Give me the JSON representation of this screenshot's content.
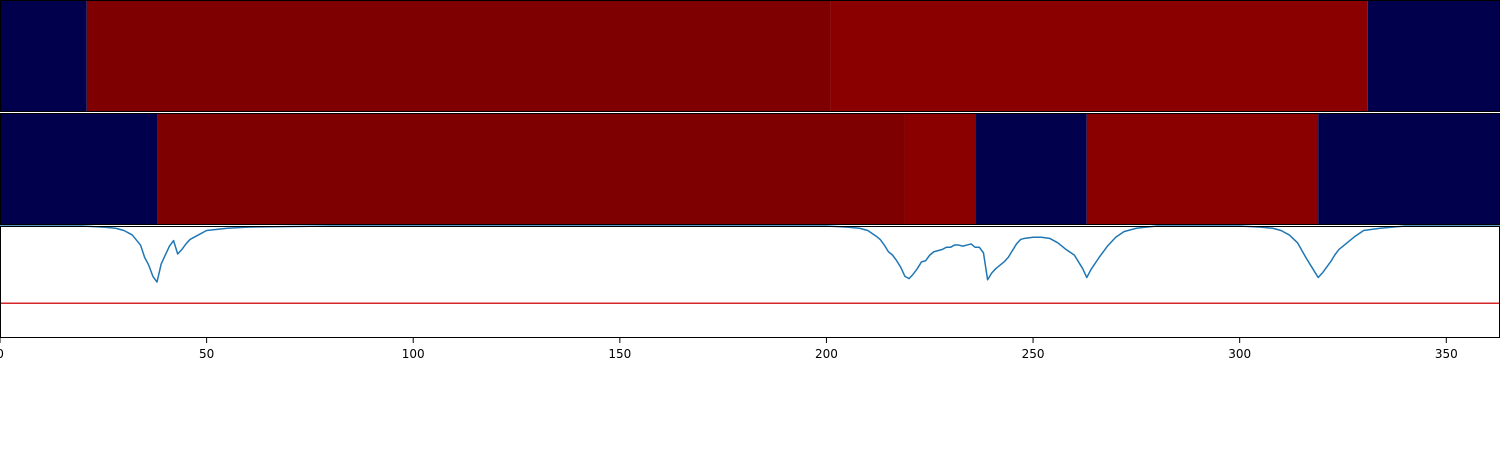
{
  "chart_data": [
    {
      "type": "heatmap",
      "row": 1,
      "xlim": [
        0,
        363
      ],
      "segments": [
        {
          "start": 0,
          "end": 21,
          "color": "#00004c"
        },
        {
          "start": 21,
          "end": 201,
          "color": "#7e0000"
        },
        {
          "start": 201,
          "end": 331,
          "color": "#8a0000"
        },
        {
          "start": 331,
          "end": 363,
          "color": "#00004c"
        }
      ]
    },
    {
      "type": "heatmap",
      "row": 2,
      "xlim": [
        0,
        363
      ],
      "segments": [
        {
          "start": 0,
          "end": 38,
          "color": "#00004c"
        },
        {
          "start": 38,
          "end": 219,
          "color": "#7e0000"
        },
        {
          "start": 219,
          "end": 236,
          "color": "#8a0000"
        },
        {
          "start": 236,
          "end": 263,
          "color": "#00004c"
        },
        {
          "start": 263,
          "end": 319,
          "color": "#8a0000"
        },
        {
          "start": 319,
          "end": 363,
          "color": "#00004c"
        }
      ]
    },
    {
      "type": "line",
      "xlim": [
        0,
        363
      ],
      "ylim": [
        0,
        1
      ],
      "threshold": {
        "value": 0.31,
        "color": "#d62728"
      },
      "series": [
        {
          "color": "#1f77b4",
          "x": [
            0,
            20,
            25,
            28,
            30,
            32,
            34,
            35,
            36,
            37,
            38,
            39,
            40,
            41,
            42,
            43,
            44,
            45,
            46,
            48,
            50,
            55,
            60,
            80,
            200,
            205,
            208,
            210,
            212,
            213,
            214,
            215,
            216,
            217,
            218,
            219,
            220,
            221,
            222,
            223,
            224,
            225,
            226,
            227,
            228,
            229,
            230,
            231,
            232,
            233,
            234,
            235,
            236,
            237,
            238,
            239,
            240,
            241,
            242,
            243,
            244,
            245,
            246,
            247,
            248,
            250,
            252,
            254,
            256,
            258,
            260,
            262,
            263,
            264,
            266,
            268,
            270,
            272,
            275,
            280,
            290,
            300,
            305,
            308,
            310,
            312,
            314,
            316,
            318,
            319,
            320,
            321,
            322,
            323,
            324,
            325,
            326,
            327,
            328,
            330,
            332,
            334,
            340,
            363
          ],
          "y": [
            1.0,
            1.0,
            0.99,
            0.98,
            0.96,
            0.92,
            0.83,
            0.72,
            0.65,
            0.55,
            0.5,
            0.66,
            0.74,
            0.82,
            0.87,
            0.75,
            0.79,
            0.84,
            0.88,
            0.92,
            0.96,
            0.98,
            0.99,
            1.0,
            1.0,
            0.99,
            0.98,
            0.96,
            0.91,
            0.88,
            0.83,
            0.77,
            0.74,
            0.69,
            0.63,
            0.55,
            0.53,
            0.57,
            0.62,
            0.68,
            0.69,
            0.74,
            0.77,
            0.78,
            0.79,
            0.81,
            0.81,
            0.83,
            0.83,
            0.82,
            0.83,
            0.84,
            0.81,
            0.81,
            0.76,
            0.52,
            0.58,
            0.62,
            0.65,
            0.68,
            0.72,
            0.78,
            0.84,
            0.88,
            0.89,
            0.9,
            0.9,
            0.89,
            0.85,
            0.79,
            0.74,
            0.62,
            0.54,
            0.61,
            0.72,
            0.82,
            0.9,
            0.95,
            0.98,
            1.0,
            1.0,
            1.0,
            0.99,
            0.98,
            0.96,
            0.92,
            0.85,
            0.72,
            0.6,
            0.54,
            0.58,
            0.63,
            0.68,
            0.74,
            0.79,
            0.82,
            0.85,
            0.88,
            0.91,
            0.96,
            0.97,
            0.98,
            1.0,
            1.0
          ]
        }
      ]
    }
  ],
  "xaxis": {
    "ticks": [
      0,
      50,
      100,
      150,
      200,
      250,
      300,
      350
    ]
  }
}
